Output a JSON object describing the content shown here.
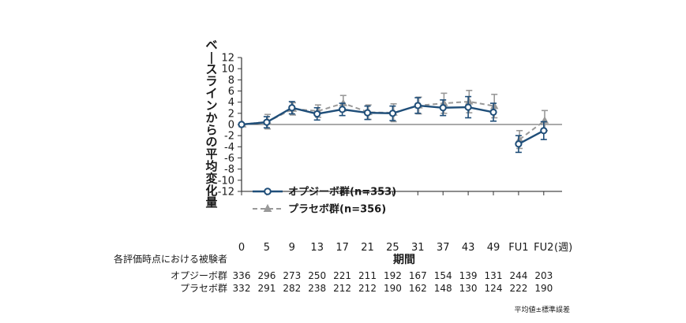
{
  "chart_data": {
    "type": "line",
    "ylabel": "ベースラインからの平均変化量",
    "xlabel": "期間",
    "x_unit": "(週)",
    "categories": [
      "0",
      "5",
      "9",
      "13",
      "17",
      "21",
      "25",
      "31",
      "37",
      "43",
      "49",
      "FU1",
      "FU2"
    ],
    "ylim": [
      -12,
      12
    ],
    "yticks": [
      "12",
      "10",
      "8",
      "6",
      "4",
      "2",
      "0",
      "-2",
      "-4",
      "-6",
      "-8",
      "-10",
      "-12"
    ],
    "series": [
      {
        "name": "オプジーボ群(n=353)",
        "color": "#1f4e79",
        "style": "solid",
        "marker": "circle",
        "values": [
          0,
          0.4,
          3.0,
          1.9,
          2.7,
          2.1,
          2.0,
          3.4,
          3.0,
          3.1,
          2.2,
          -3.5,
          -1.1
        ],
        "err": [
          0,
          1.0,
          1.1,
          1.1,
          1.1,
          1.2,
          1.3,
          1.4,
          1.4,
          1.9,
          1.6,
          1.5,
          1.6
        ]
      },
      {
        "name": "プラセボ群(n=356)",
        "color": "#999999",
        "style": "dashed",
        "marker": "triangle",
        "values": [
          0,
          0.5,
          2.8,
          2.4,
          3.8,
          2.2,
          2.1,
          3.4,
          3.8,
          4.1,
          3.3,
          -2.7,
          0.7
        ],
        "err": [
          0,
          1.3,
          1.1,
          1.1,
          1.4,
          1.3,
          1.6,
          1.5,
          1.8,
          2.0,
          2.1,
          1.6,
          1.8
        ]
      }
    ],
    "table": {
      "title": "各評価時点における被験者",
      "rows": [
        {
          "label": "オプジーボ群",
          "values": [
            "336",
            "296",
            "273",
            "250",
            "221",
            "211",
            "192",
            "167",
            "154",
            "139",
            "131",
            "244",
            "203"
          ]
        },
        {
          "label": "プラセボ群",
          "values": [
            "332",
            "291",
            "282",
            "238",
            "212",
            "212",
            "190",
            "162",
            "148",
            "130",
            "124",
            "222",
            "190"
          ]
        }
      ]
    },
    "footnote": "平均値±標準誤差",
    "legend_position": "lower-left",
    "grid": false
  }
}
